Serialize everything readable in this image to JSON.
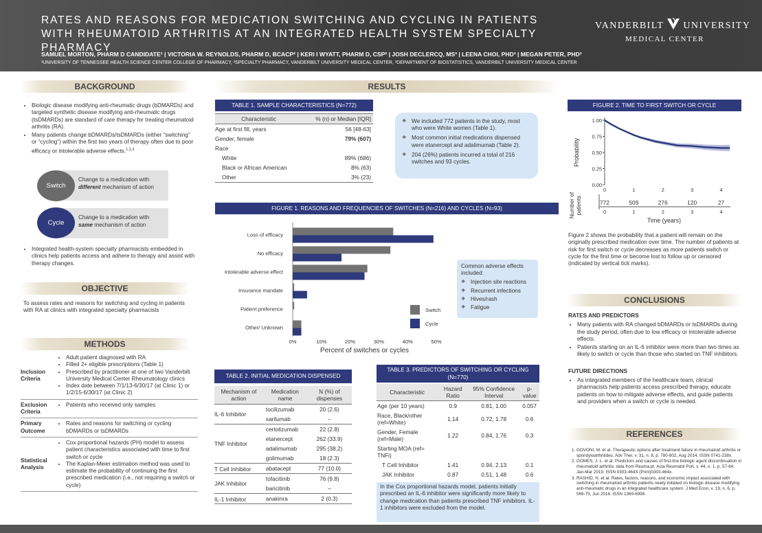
{
  "header": {
    "title": "RATES AND REASONS FOR MEDICATION SWITCHING AND CYCLING IN PATIENTS WITH RHEUMATOID ARTHRITIS AT AN INTEGRATED HEALTH SYSTEM SPECIALTY PHARMACY",
    "logo_left": "VANDERBILT",
    "logo_right": "UNIVERSITY",
    "logo_sub": "MEDICAL CENTER",
    "authors": "SAMUEL MORTON, PHARM D CANDIDATE¹  |  VICTORIA W. REYNOLDS, PHARM D, BCACP²  |  KERI I WYATT, PHARM D, CSP²  |  JOSH DECLERCQ, MS³  |  LEENA CHOI, PHD³  |  MEGAN PETER, PHD²",
    "affiliations": "¹UNIVERSITY OF TENNESSEE HEALTH SCIENCE CENTER COLLEGE OF PHARMACY, ²SPECIALTY PHARMACY, VANDERBILT UNIVERSITY MEDICAL CENTER, ³DEPARTMENT OF BIOSTATISTICS, VANDERBILT UNIVERSITY MEDICAL CENTER"
  },
  "background": {
    "heading": "BACKGROUND",
    "bullets": [
      "Biologic disease modifying anti-rheumatic drugs (bDMARDs) and targeted synthetic disease modifying anti-rheumatic drugs (tsDMARDs) are standard of care therapy for treating rheumatoid arthritis (RA).",
      "Many patients change bDMARDs/tsDMARDs (either “switching” or “cycling”) within the first two years of therapy often due to poor efficacy or intolerable adverse effects."
    ],
    "refmark": "1,2,3",
    "switch_label": "Switch",
    "switch_def_a": "Change to a medication with",
    "switch_def_b": "different",
    "switch_def_c": " mechanism of action",
    "cycle_label": "Cycle",
    "cycle_def_a": "Change to a medication with",
    "cycle_def_b": "same",
    "cycle_def_c": " mechanism of action",
    "bullet3": "Integrated health-system specialty pharmacists embedded in clinics help patients access and adhere to therapy and assist with therapy changes."
  },
  "objective": {
    "heading": "OBJECTIVE",
    "text": "To assess rates and reasons for switching and cycling in patients with RA at clinics with integrated specialty pharmacists"
  },
  "methods": {
    "heading": "METHODS",
    "rows": [
      {
        "label": "Inclusion Criteria",
        "items": [
          "Adult patient diagnosed with RA",
          "Filled 2+ eligible prescriptions (Table 1)",
          "Prescribed by practitioner at one of two Vanderbilt University Medical Center Rheumatology clinics",
          "Index date between 7/1/13-6/30/17 (at Clinic 1) or 1/2/15-6/30/17 (at Clinic 2)"
        ]
      },
      {
        "label": "Exclusion Criteria",
        "items": [
          "Patients who received only samples"
        ]
      },
      {
        "label": "Primary Outcome",
        "items": [
          "Rates and reasons for switching or cycling bDMARDs or tsDMARDs"
        ]
      },
      {
        "label": "Statistical Analysis",
        "items": [
          "Cox proportional hazards (PH) model to assess patient characteristics associated with time to first switch or cycle",
          "The Kaplan-Meier estimation method was used to estimate the probability of continuing the first prescribed medication (i.e., not requiring a switch or cycle)"
        ]
      }
    ]
  },
  "results": {
    "heading": "RESULTS",
    "bubble": [
      "We included 772 patients in the study, most who were White women (Table 1).",
      "Most common initial medications dispensed were etanercept and adalimumab (Table 2).",
      "204 (26%) patients incurred a total of 216 switches and 93 cycles."
    ],
    "adverse_title": "Common adverse effects included:",
    "adverse_items": [
      "Injection site reactions",
      "Recurrent infections",
      "Hives/rash",
      "Fatigue"
    ]
  },
  "table1": {
    "title": "TABLE 1. SAMPLE CHARACTERISTICS (N=772)",
    "headers": [
      "Characteristic",
      "% (n) or Median [IQR]"
    ],
    "rows": [
      {
        "c": "Age at first fill, years",
        "v": "56 [48-63]",
        "indent": false,
        "bold": false
      },
      {
        "c": "Gender, female",
        "v": "79% (607)",
        "indent": false,
        "bold": true
      },
      {
        "c": "Race",
        "v": "",
        "indent": false,
        "bold": false
      },
      {
        "c": "White",
        "v": "89% (686)",
        "indent": true,
        "bold": false
      },
      {
        "c": "Black or African American",
        "v": "8% (63)",
        "indent": true,
        "bold": false
      },
      {
        "c": "Other",
        "v": "3% (23)",
        "indent": true,
        "bold": false
      }
    ]
  },
  "figure1": {
    "title": "FIGURE 1. REASONS AND FREQUENCIES OF SWITCHES (N=216) AND CYCLES (N=93)"
  },
  "chart_data": {
    "type": "bar",
    "orientation": "horizontal",
    "categories": [
      "Loss of efficacy",
      "No efficacy",
      "Intolerable adverse effect",
      "Insurance mandate",
      "Patient preference",
      "Other/ Unknown"
    ],
    "series": [
      {
        "name": "Switch",
        "color": "#737373",
        "values": [
          35,
          34,
          26,
          0.5,
          0.5,
          3
        ]
      },
      {
        "name": "Cycle",
        "color": "#2e3a7b",
        "values": [
          49,
          17,
          25,
          5,
          0,
          3
        ]
      }
    ],
    "xlabel": "Percent of switches or cycles",
    "xticks": [
      "0%",
      "10%",
      "20%",
      "30%",
      "40%",
      "50%"
    ],
    "xlim": [
      0,
      50
    ],
    "legend": "right"
  },
  "figure2": {
    "title": "FIGURE 2. TIME TO FIRST SWITCH OR CYCLE",
    "ylabel": "Probability",
    "yticks": [
      "1.00",
      "0.75",
      "0.50",
      "0.25",
      "0.00"
    ],
    "xticks": [
      "0",
      "1",
      "2",
      "3",
      "4"
    ],
    "xlabel": "Time (years)",
    "risk_label_a": "Number of",
    "risk_label_b": "patients",
    "risk_counts": [
      "772",
      "509",
      "276",
      "120",
      "27"
    ],
    "risk_ticks": [
      "0",
      "1",
      "2",
      "3",
      "4"
    ],
    "km_points": [
      [
        0,
        1.0
      ],
      [
        0.1,
        0.97
      ],
      [
        0.25,
        0.93
      ],
      [
        0.5,
        0.87
      ],
      [
        0.75,
        0.82
      ],
      [
        1,
        0.77
      ],
      [
        1.25,
        0.73
      ],
      [
        1.5,
        0.7
      ],
      [
        1.75,
        0.67
      ],
      [
        2,
        0.65
      ],
      [
        2.25,
        0.63
      ],
      [
        2.5,
        0.61
      ],
      [
        3,
        0.6
      ],
      [
        3.25,
        0.59
      ],
      [
        3.5,
        0.58
      ],
      [
        4,
        0.57
      ],
      [
        4.3,
        0.57
      ]
    ],
    "description": "Figure 2 shows the probability that a patient will remain on the originally prescribed medication over time. The number of patients at risk for first switch or cycle decreases as more patients switch or cycle for the first time or become lost to follow up or censored (indicated by vertical tick marks)."
  },
  "table2": {
    "title": "TABLE 2. INITIAL MEDICATION DISPENSED",
    "headers": [
      "Mechanism of action",
      "Medication name",
      "N (%) of dispenses"
    ],
    "groups": [
      {
        "moa": "IL-6 Inhibitor",
        "meds": [
          [
            "tocilizumab",
            "20 (2.6)"
          ],
          [
            "sarilumab",
            "–"
          ]
        ]
      },
      {
        "moa": "TNF Inhibitor",
        "meds": [
          [
            "certolizumab",
            "22 (2.8)"
          ],
          [
            "etanercept",
            "262 (33.9)"
          ],
          [
            "adalimumab",
            "295 (38.2)"
          ],
          [
            "golimumab",
            "18 (2.3)"
          ]
        ]
      },
      {
        "moa": "T Cell Inhibitor",
        "meds": [
          [
            "abatacept",
            "77 (10.0)"
          ]
        ]
      },
      {
        "moa": "JAK Inhibitor",
        "meds": [
          [
            "tofacitinib",
            "76 (9.8)"
          ],
          [
            "baricitinib",
            "–"
          ]
        ]
      },
      {
        "moa": "IL-1 Inhibitor",
        "meds": [
          [
            "anakinra",
            "2 (0.3)"
          ]
        ]
      }
    ]
  },
  "table3": {
    "title": "TABLE  3. PREDICTORS OF SWITCHING OR CYCLING (N=770)",
    "headers": [
      "Characteristic",
      "Hazard Ratio",
      "95% Confidence Interval",
      "p-value"
    ],
    "rows": [
      [
        "Age (per 10 years)",
        "0.9",
        "0.81, 1.00",
        "0.057",
        false
      ],
      [
        "Race, Black/other (ref=White)",
        "1.14",
        "0.72, 1.78",
        "0.6",
        false
      ],
      [
        "Gender, Female (ref=Male)",
        "1.22",
        "0.84, 1.76",
        "0.3",
        false
      ],
      [
        "Starting MOA (ref= TNFi)",
        "",
        "",
        "",
        false
      ],
      [
        "T Cell Inhibitor",
        "1.41",
        "0.94, 2.13",
        "0.1",
        true
      ],
      [
        "JAK Inhibitor",
        "0.87",
        "0.51, 1.48",
        "0.6",
        true
      ],
      [
        "IL-6 Inhibitor",
        "2.45",
        "1.28, 4.69",
        "0.007",
        true
      ]
    ],
    "note": "In the Cox proportional hazards model, patients initially prescribed an IL-6 inhibitor were significantly more likely to change medication than patients prescribed TNF inhibitors. IL-1 inhibitors were excluded from the model."
  },
  "conclusions": {
    "heading": "CONCLUSIONS",
    "sub1": "RATES AND PREDICTORS",
    "items1": [
      "Many patients with RA changed bDMARDs or tsDMARDs during the study period, often due to low efficacy or intolerable adverse effects.",
      "Patients starting on an IL-6 inhibitor were more than two times as likely to switch or cycle than those who started on TNF inhibitors."
    ],
    "sub2": "FUTURE DIRECTIONS",
    "items2": [
      "As integrated members of the healthcare team, clinical pharmacists help patients access prescribed therapy, educate patients on how to mitigate adverse effects, and guide patients and providers when a switch or cycle is needed."
    ]
  },
  "references": {
    "heading": "REFERENCES",
    "items": [
      "GOVONI, M.  et al. Therapeutic options after treatment failure in rheumatoid arthritis or spondyloarthritides. Adv Ther, v. 31, n. 8, p. 780-802, Aug 2014. ISSN 0741-238x.",
      "GOMES, J. L.  et al. Predictors and causes of first-line biologic agent discontinuation in rheumatoid arthritis: data from Reuma.pt. Acta Reumatol Port, v. 44, n. 1, p. 57-64, Jan-Mar 2019. ISSN 0303-464X (Print)0303-464x.",
      "RASHID, N.  et al. Rates, factors, reasons, and economic impact associated with switching in rheumatoid arthritis patients newly initiated on biologic disease modifying anti-rheumatic drugs in an integrated healthcare system. J Med Econ, v. 19, n. 6, p. 569-75, Jun 2016. ISSN 1369-6998."
    ]
  }
}
